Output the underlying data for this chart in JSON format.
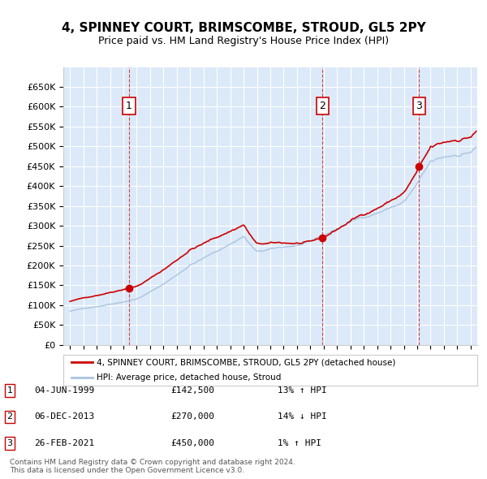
{
  "title": "4, SPINNEY COURT, BRIMSCOMBE, STROUD, GL5 2PY",
  "subtitle": "Price paid vs. HM Land Registry's House Price Index (HPI)",
  "xlim": [
    1994.5,
    2025.5
  ],
  "ylim": [
    0,
    700000
  ],
  "yticks": [
    0,
    50000,
    100000,
    150000,
    200000,
    250000,
    300000,
    350000,
    400000,
    450000,
    500000,
    550000,
    600000,
    650000
  ],
  "ytick_labels": [
    "£0",
    "£50K",
    "£100K",
    "£150K",
    "£200K",
    "£250K",
    "£300K",
    "£350K",
    "£400K",
    "£450K",
    "£500K",
    "£550K",
    "£600K",
    "£650K"
  ],
  "bg_color": "#dce9f8",
  "plot_bg_color": "#dce9f8",
  "grid_color": "#ffffff",
  "sale_color": "#cc0000",
  "hpi_color": "#aac4e0",
  "sale_line_color": "#cc0000",
  "hpi_line_color": "#aac4e0",
  "transactions": [
    {
      "date_num": 1999.42,
      "price": 142500,
      "label": "1"
    },
    {
      "date_num": 2013.92,
      "price": 270000,
      "label": "2"
    },
    {
      "date_num": 2021.15,
      "price": 450000,
      "label": "3"
    }
  ],
  "sale_label": "4, SPINNEY COURT, BRIMSCOMBE, STROUD, GL5 2PY (detached house)",
  "hpi_label": "HPI: Average price, detached house, Stroud",
  "table_rows": [
    {
      "num": "1",
      "date": "04-JUN-1999",
      "price": "£142,500",
      "hpi": "13% ↑ HPI"
    },
    {
      "num": "2",
      "date": "06-DEC-2013",
      "price": "£270,000",
      "hpi": "14% ↓ HPI"
    },
    {
      "num": "3",
      "date": "26-FEB-2021",
      "price": "£450,000",
      "hpi": "1% ↑ HPI"
    }
  ],
  "footer": "Contains HM Land Registry data © Crown copyright and database right 2024.\nThis data is licensed under the Open Government Licence v3.0."
}
